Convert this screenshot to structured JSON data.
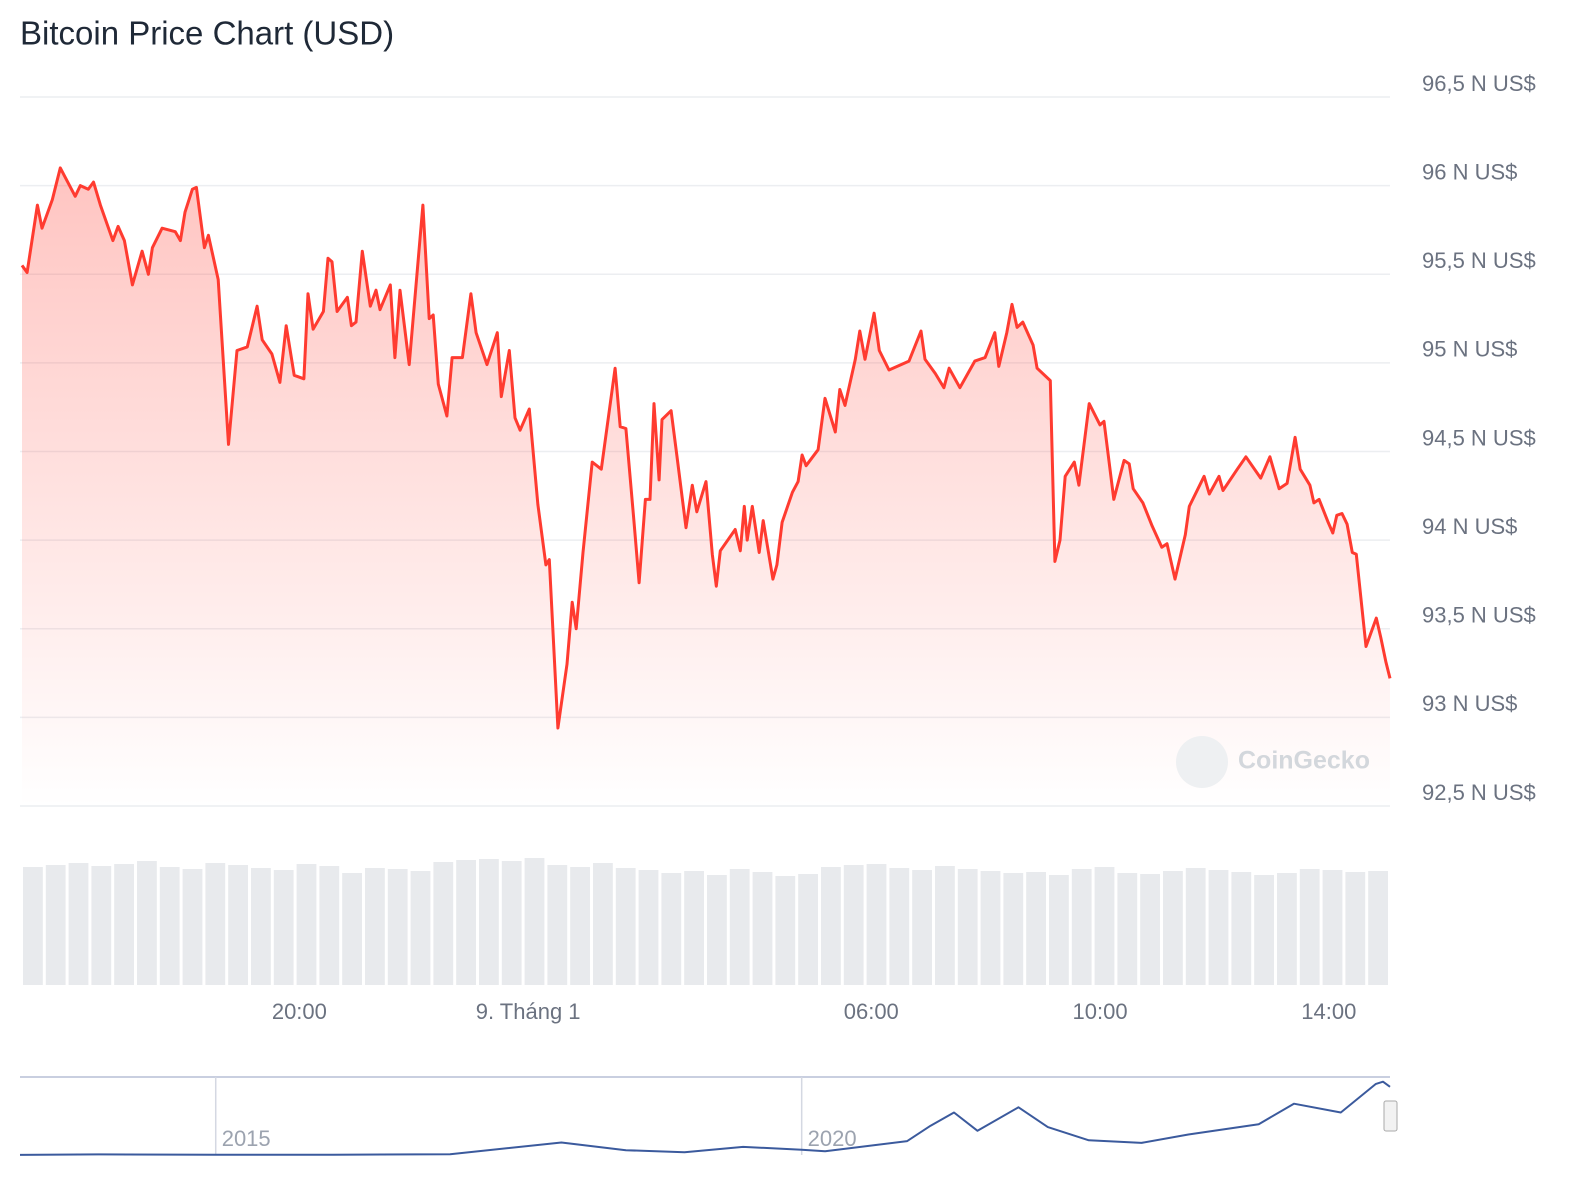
{
  "chart_data": [
    {
      "type": "line",
      "title": "Bitcoin Price Chart (USD)",
      "watermark": "CoinGecko",
      "color": "#ff3b30",
      "grid": true,
      "xlim": [
        -8.85,
        15.07
      ],
      "xticks": [
        {
          "value": -4,
          "label": "20:00"
        },
        {
          "value": 0,
          "label": "9. Tháng 1"
        },
        {
          "value": 6,
          "label": "06:00"
        },
        {
          "value": 10,
          "label": "10:00"
        },
        {
          "value": 14,
          "label": "14:00"
        }
      ],
      "ylim": [
        92500,
        96500
      ],
      "yticks": [
        {
          "value": 92500,
          "label": "92,5 N US$"
        },
        {
          "value": 93000,
          "label": "93 N US$"
        },
        {
          "value": 93500,
          "label": "93,5 N US$"
        },
        {
          "value": 94000,
          "label": "94 N US$"
        },
        {
          "value": 94500,
          "label": "94,5 N US$"
        },
        {
          "value": 95000,
          "label": "95 N US$"
        },
        {
          "value": 95500,
          "label": "95,5 N US$"
        },
        {
          "value": 96000,
          "label": "96 N US$"
        },
        {
          "value": 96500,
          "label": "96,5 N US$"
        }
      ],
      "x": [
        -8.85,
        -8.76,
        -8.58,
        -8.5,
        -8.32,
        -8.18,
        -7.92,
        -7.83,
        -7.69,
        -7.6,
        -7.48,
        -7.26,
        -7.17,
        -7.06,
        -6.92,
        -6.75,
        -6.64,
        -6.57,
        -6.4,
        -6.17,
        -6.08,
        -6.0,
        -5.87,
        -5.8,
        -5.66,
        -5.59,
        -5.42,
        -5.24,
        -5.09,
        -4.91,
        -4.74,
        -4.65,
        -4.48,
        -4.34,
        -4.23,
        -4.09,
        -3.92,
        -3.85,
        -3.76,
        -3.58,
        -3.5,
        -3.43,
        -3.34,
        -3.16,
        -3.09,
        -3.01,
        -2.9,
        -2.76,
        -2.66,
        -2.59,
        -2.41,
        -2.33,
        -2.24,
        -2.08,
        -1.84,
        -1.73,
        -1.66,
        -1.57,
        -1.42,
        -1.33,
        -1.15,
        -1.0,
        -0.91,
        -0.72,
        -0.54,
        -0.47,
        -0.33,
        -0.23,
        -0.14,
        0.02,
        0.17,
        0.31,
        0.37,
        0.52,
        0.68,
        0.77,
        0.84,
        0.96,
        1.12,
        1.28,
        1.52,
        1.61,
        1.71,
        1.85,
        1.94,
        2.05,
        2.13,
        2.2,
        2.29,
        2.34,
        2.5,
        2.6,
        2.76,
        2.87,
        2.95,
        3.11,
        3.22,
        3.29,
        3.36,
        3.62,
        3.71,
        3.78,
        3.83,
        3.92,
        4.04,
        4.11,
        4.28,
        4.35,
        4.44,
        4.62,
        4.72,
        4.79,
        4.86,
        5.07,
        5.19,
        5.37,
        5.45,
        5.54,
        5.72,
        5.8,
        5.89,
        6.05,
        6.14,
        6.31,
        6.66,
        6.87,
        6.94,
        7.12,
        7.27,
        7.36,
        7.55,
        7.81,
        7.99,
        8.16,
        8.23,
        8.37,
        8.46,
        8.55,
        8.65,
        8.83,
        8.9,
        9.13,
        9.21,
        9.3,
        9.39,
        9.55,
        9.63,
        9.81,
        10.0,
        10.07,
        10.24,
        10.42,
        10.51,
        10.58,
        10.75,
        10.91,
        11.08,
        11.17,
        11.31,
        11.49,
        11.56,
        11.82,
        11.91,
        12.08,
        12.15,
        12.4,
        12.55,
        12.81,
        12.97,
        13.13,
        13.27,
        13.41,
        13.5,
        13.67,
        13.74,
        13.83,
        13.99,
        14.07,
        14.14,
        14.23,
        14.32,
        14.41,
        14.48,
        14.65,
        14.83,
        14.91,
        15.0,
        15.07
      ],
      "values": [
        95550,
        95510,
        95890,
        95760,
        95920,
        96100,
        95940,
        96000,
        95980,
        96020,
        95890,
        95690,
        95770,
        95690,
        95440,
        95630,
        95500,
        95650,
        95760,
        95740,
        95690,
        95850,
        95980,
        95990,
        95650,
        95720,
        95470,
        94540,
        95070,
        95090,
        95320,
        95130,
        95050,
        94890,
        95210,
        94930,
        94910,
        95390,
        95190,
        95290,
        95590,
        95570,
        95290,
        95370,
        95210,
        95230,
        95630,
        95320,
        95410,
        95300,
        95440,
        95030,
        95410,
        94990,
        95890,
        95250,
        95270,
        94880,
        94700,
        95030,
        95030,
        95390,
        95170,
        94990,
        95170,
        94810,
        95070,
        94690,
        94620,
        94740,
        94200,
        93860,
        93890,
        92940,
        93300,
        93650,
        93500,
        93930,
        94440,
        94400,
        94970,
        94640,
        94630,
        94110,
        93760,
        94230,
        94230,
        94770,
        94340,
        94680,
        94730,
        94480,
        94070,
        94310,
        94160,
        94330,
        93920,
        93740,
        93940,
        94060,
        93940,
        94190,
        94000,
        94190,
        93930,
        94110,
        93780,
        93860,
        94100,
        94270,
        94330,
        94480,
        94420,
        94510,
        94800,
        94610,
        94850,
        94760,
        95020,
        95180,
        95020,
        95280,
        95070,
        94960,
        95010,
        95180,
        95020,
        94940,
        94860,
        94970,
        94860,
        95010,
        95030,
        95170,
        94980,
        95170,
        95330,
        95200,
        95230,
        95100,
        94970,
        94900,
        93880,
        94000,
        94360,
        94440,
        94310,
        94770,
        94650,
        94670,
        94230,
        94450,
        94430,
        94290,
        94210,
        94080,
        93960,
        93980,
        93780,
        94030,
        94190,
        94360,
        94260,
        94360,
        94280,
        94400,
        94470,
        94350,
        94470,
        94290,
        94320,
        94580,
        94400,
        94310,
        94210,
        94230,
        94100,
        94040,
        94140,
        94150,
        94090,
        93930,
        93920,
        93400,
        93560,
        93450,
        93310,
        93220
      ],
      "volume": {
        "color": "#e8eaed",
        "ylim": [
          0,
          130
        ],
        "values": [
          118,
          120,
          122,
          119,
          121,
          124,
          118,
          116,
          122,
          120,
          117,
          115,
          121,
          119,
          112,
          117,
          116,
          114,
          123,
          125,
          126,
          124,
          127,
          120,
          118,
          122,
          117,
          115,
          112,
          114,
          110,
          116,
          113,
          109,
          111,
          118,
          120,
          121,
          117,
          115,
          119,
          116,
          114,
          112,
          113,
          110,
          116,
          118,
          112,
          111,
          114,
          117,
          115,
          113,
          110,
          112,
          116,
          115,
          113,
          114
        ]
      }
    },
    {
      "type": "line",
      "color": "#3b5a9d",
      "xlim": [
        2013.33,
        2025.02
      ],
      "xticks": [
        2015,
        2020
      ],
      "ylim": [
        0,
        105000
      ],
      "x": [
        2013.33,
        2014.0,
        2015.0,
        2016.0,
        2017.0,
        2017.95,
        2018.5,
        2019.0,
        2019.5,
        2020.0,
        2020.2,
        2020.9,
        2021.1,
        2021.3,
        2021.5,
        2021.85,
        2022.1,
        2022.45,
        2022.9,
        2023.3,
        2023.9,
        2024.2,
        2024.6,
        2024.9,
        2024.96,
        2025.02
      ],
      "values": [
        100,
        800,
        300,
        430,
        1000,
        17000,
        6500,
        3700,
        11000,
        7200,
        5000,
        19000,
        40000,
        58000,
        33000,
        65000,
        38000,
        20000,
        16500,
        28000,
        42000,
        70000,
        58000,
        97000,
        100000,
        93000
      ]
    }
  ]
}
